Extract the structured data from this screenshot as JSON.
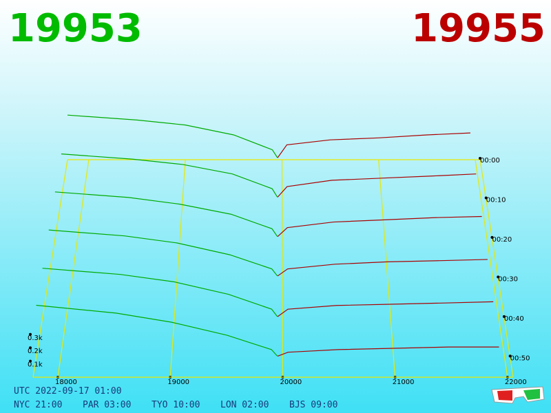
{
  "header": {
    "bid": "19953",
    "ask": "19955"
  },
  "footer": {
    "utc": "UTC 2022-09-17 01:00",
    "clocks": [
      "NYC 21:00",
      "PAR 03:00",
      "TYO 10:00",
      "LON 02:00",
      "BJS 09:00"
    ]
  },
  "chart_data": {
    "type": "depth3d",
    "xlim": [
      17780,
      22050
    ],
    "xticks": [
      18000,
      19000,
      20000,
      21000,
      22000
    ],
    "ylim": [
      0,
      0.5
    ],
    "yticks": [
      {
        "value": 0.1,
        "label": "0.1k"
      },
      {
        "value": 0.2,
        "label": "0.2k"
      },
      {
        "value": 0.3,
        "label": "0.3k"
      }
    ],
    "zlim": [
      0,
      55
    ],
    "zticks": [
      {
        "value": 0,
        "label": "00:00"
      },
      {
        "value": 10,
        "label": "00:10"
      },
      {
        "value": 20,
        "label": "00:20"
      },
      {
        "value": 30,
        "label": "00:30"
      },
      {
        "value": 40,
        "label": "00:40"
      },
      {
        "value": 50,
        "label": "00:50"
      }
    ],
    "bid_color": "#00aa00",
    "ask_color": "#aa0000",
    "grid_color": "#e8e800",
    "bid_prices": [
      17780,
      18500,
      19000,
      19500,
      19900,
      19953
    ],
    "ask_prices": [
      19955,
      20050,
      20500,
      21000,
      21500,
      21950
    ],
    "snapshots": [
      {
        "time": 0,
        "bids": [
          0.45,
          0.4,
          0.35,
          0.25,
          0.1,
          0.02
        ],
        "asks": [
          0.02,
          0.15,
          0.2,
          0.22,
          0.25,
          0.27
        ]
      },
      {
        "time": 10,
        "bids": [
          0.43,
          0.38,
          0.33,
          0.24,
          0.1,
          0.02
        ],
        "asks": [
          0.02,
          0.12,
          0.18,
          0.2,
          0.22,
          0.24
        ]
      },
      {
        "time": 20,
        "bids": [
          0.42,
          0.37,
          0.31,
          0.22,
          0.09,
          0.02
        ],
        "asks": [
          0.02,
          0.1,
          0.15,
          0.17,
          0.19,
          0.2
        ]
      },
      {
        "time": 30,
        "bids": [
          0.41,
          0.36,
          0.3,
          0.2,
          0.08,
          0.02
        ],
        "asks": [
          0.02,
          0.08,
          0.12,
          0.14,
          0.15,
          0.16
        ]
      },
      {
        "time": 40,
        "bids": [
          0.4,
          0.35,
          0.29,
          0.19,
          0.07,
          0.01
        ],
        "asks": [
          0.01,
          0.07,
          0.1,
          0.11,
          0.12,
          0.13
        ]
      },
      {
        "time": 50,
        "bids": [
          0.4,
          0.34,
          0.27,
          0.17,
          0.06,
          0.01
        ],
        "asks": [
          0.01,
          0.04,
          0.06,
          0.07,
          0.08,
          0.08
        ]
      }
    ]
  }
}
